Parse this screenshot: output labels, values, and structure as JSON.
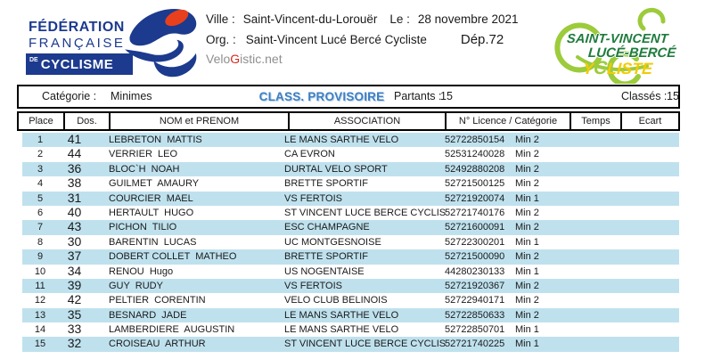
{
  "header": {
    "ffc_logo": {
      "line1": "FÉDÉRATION",
      "line2": "FRANÇAISE",
      "de": "DE",
      "line3": "CYCLISME"
    },
    "ville_label": "Ville :",
    "ville": "Saint-Vincent-du-Lorouër",
    "le_label": "Le :",
    "date": "28 novembre 2021",
    "org_label": "Org. :",
    "org": "Saint-Vincent Lucé Bercé Cycliste",
    "dep": "Dép.72",
    "velogistic": {
      "pre": "Velo",
      "g": "G",
      "post": "istic.net"
    },
    "club_logo": {
      "line1": "SAINT-VINCENT",
      "line2": "LUCÉ-BERCÉ",
      "y": "Y",
      "c": "C",
      "liste": "LISTE"
    }
  },
  "category_band": {
    "category_label": "Catégorie :",
    "category": "Minimes",
    "classification": "CLASS. PROVISOIRE",
    "partants_label": "Partants :",
    "partants": "15",
    "classes_label": "Classés :",
    "classes": "15"
  },
  "table": {
    "columns": [
      "Place",
      "Dos.",
      "NOM et PRENOM",
      "ASSOCIATION",
      "N° Licence / Catégorie",
      "Temps",
      "Ecart"
    ],
    "rows": [
      {
        "place": "1",
        "dos": "41",
        "nom": "LEBRETON  MATTIS",
        "association": "LE MANS SARTHE VELO",
        "licence": "52722850154",
        "categorie": "Min 2",
        "temps": "",
        "ecart": ""
      },
      {
        "place": "2",
        "dos": "44",
        "nom": "VERRIER  LEO",
        "association": "CA EVRON",
        "licence": "52531240028",
        "categorie": "Min 2",
        "temps": "",
        "ecart": ""
      },
      {
        "place": "3",
        "dos": "36",
        "nom": "BLOC`H  NOAH",
        "association": "DURTAL VELO SPORT",
        "licence": "52492880208",
        "categorie": "Min 2",
        "temps": "",
        "ecart": ""
      },
      {
        "place": "4",
        "dos": "38",
        "nom": "GUILMET  AMAURY",
        "association": "BRETTE SPORTIF",
        "licence": "52721500125",
        "categorie": "Min 2",
        "temps": "",
        "ecart": ""
      },
      {
        "place": "5",
        "dos": "31",
        "nom": "COURCIER  MAEL",
        "association": "VS FERTOIS",
        "licence": "52721920074",
        "categorie": "Min 1",
        "temps": "",
        "ecart": ""
      },
      {
        "place": "6",
        "dos": "40",
        "nom": "HERTAULT  HUGO",
        "association": "ST VINCENT LUCE BERCE CYCLIS",
        "licence": "52721740176",
        "categorie": "Min 2",
        "temps": "",
        "ecart": ""
      },
      {
        "place": "7",
        "dos": "43",
        "nom": "PICHON  TILIO",
        "association": "ESC CHAMPAGNE",
        "licence": "52721600091",
        "categorie": "Min 2",
        "temps": "",
        "ecart": ""
      },
      {
        "place": "8",
        "dos": "30",
        "nom": "BARENTIN  LUCAS",
        "association": "UC MONTGESNOISE",
        "licence": "52722300201",
        "categorie": "Min 1",
        "temps": "",
        "ecart": ""
      },
      {
        "place": "9",
        "dos": "37",
        "nom": "DOBERT COLLET  MATHEO",
        "association": "BRETTE SPORTIF",
        "licence": "52721500090",
        "categorie": "Min 2",
        "temps": "",
        "ecart": ""
      },
      {
        "place": "10",
        "dos": "34",
        "nom": "RENOU  Hugo",
        "association": "US NOGENTAISE",
        "licence": "44280230133",
        "categorie": "Min 1",
        "temps": "",
        "ecart": ""
      },
      {
        "place": "11",
        "dos": "39",
        "nom": "GUY  RUDY",
        "association": "VS FERTOIS",
        "licence": "52721920367",
        "categorie": "Min 2",
        "temps": "",
        "ecart": ""
      },
      {
        "place": "12",
        "dos": "42",
        "nom": "PELTIER  CORENTIN",
        "association": "VELO CLUB BELINOIS",
        "licence": "52722940171",
        "categorie": "Min 2",
        "temps": "",
        "ecart": ""
      },
      {
        "place": "13",
        "dos": "35",
        "nom": "BESNARD  JADE",
        "association": "LE MANS SARTHE VELO",
        "licence": "52722850633",
        "categorie": "Min 2",
        "temps": "",
        "ecart": ""
      },
      {
        "place": "14",
        "dos": "33",
        "nom": "LAMBERDIERE  AUGUSTIN",
        "association": "LE MANS SARTHE VELO",
        "licence": "52722850701",
        "categorie": "Min 1",
        "temps": "",
        "ecart": ""
      },
      {
        "place": "15",
        "dos": "32",
        "nom": "CROISEAU  ARTHUR",
        "association": "ST VINCENT LUCE BERCE CYCLIS",
        "licence": "52721740225",
        "categorie": "Min 1",
        "temps": "",
        "ecart": ""
      }
    ]
  },
  "colors": {
    "stripe_blue": "#bfe1ee",
    "ffc_navy": "#1c3a8e",
    "ffc_red": "#e8401c",
    "class_provisoire_blue": "#3f7fc1",
    "club_bright_green": "#9ccb3b",
    "club_dark_green": "#1e7b3c",
    "club_yellow": "#f2cb05",
    "velogistic_gray": "#8f8f8f",
    "velogistic_red": "#d42a1e"
  }
}
